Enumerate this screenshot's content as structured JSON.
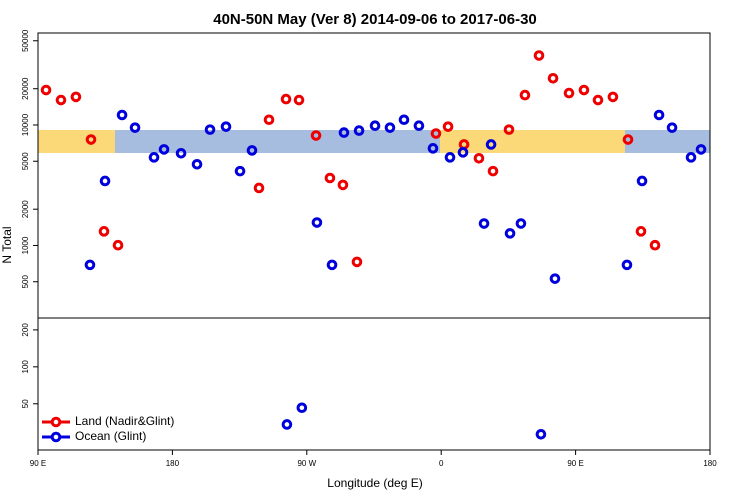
{
  "chart_data": [
    {
      "type": "scatter",
      "title": "40N-50N May (Ver 8)   2014-09-06 to 2017-06-30",
      "ylabel": "N Total",
      "log_y": true,
      "grid": false,
      "legend": "lower left",
      "xlim": [
        90,
        540
      ],
      "ylim": [
        250,
        58000
      ],
      "yticks": [
        500,
        1000,
        2000,
        5000,
        10000,
        20000,
        50000
      ],
      "series": [
        {
          "name": "Land (Nadir&Glint)",
          "color": "#ee0000",
          "x": [
            95.4,
            105.4,
            115.4,
            125.5,
            134.2,
            143.6,
            238.0,
            244.7,
            256.1,
            264.8,
            276.2,
            285.5,
            294.2,
            303.6,
            356.5,
            364.6,
            375.3,
            385.3,
            394.7,
            405.4,
            416.1,
            425.5,
            434.9,
            445.6,
            455.6,
            465.0,
            475.0,
            485.1,
            493.8,
            503.2
          ],
          "values": [
            19500,
            16100,
            17100,
            7570,
            1310,
            1005,
            3000,
            11050,
            16400,
            16100,
            8170,
            3630,
            3180,
            730,
            8490,
            9680,
            6890,
            5290,
            4140,
            9150,
            17700,
            37700,
            24400,
            18400,
            19500,
            16100,
            17100,
            7570,
            1310,
            1005
          ]
        },
        {
          "name": "Ocean (Glint)",
          "color": "#0000dd",
          "x": [
            124.8,
            134.9,
            146.3,
            155.0,
            167.7,
            174.4,
            185.8,
            196.5,
            205.2,
            215.9,
            225.3,
            233.3,
            276.8,
            286.9,
            294.9,
            305.0,
            315.7,
            325.7,
            335.1,
            345.1,
            354.5,
            365.9,
            374.6,
            388.7,
            393.4,
            406.1,
            413.4,
            436.2,
            484.4,
            494.5,
            505.9,
            514.6,
            527.3,
            534.0
          ],
          "values": [
            690,
            3430,
            12100,
            9500,
            5390,
            6270,
            5820,
            4720,
            9150,
            9680,
            4140,
            6150,
            1550,
            690,
            8650,
            8980,
            9860,
            9500,
            11050,
            9860,
            6400,
            5390,
            5930,
            1520,
            6890,
            1260,
            1520,
            530,
            690,
            3430,
            12100,
            9500,
            5390,
            6270
          ]
        }
      ]
    },
    {
      "type": "scatter",
      "xlabel": "Longitude (deg E)",
      "log_y": true,
      "grid": false,
      "xlim": [
        90,
        540
      ],
      "xticks": [
        {
          "value": 90,
          "label": "90 E"
        },
        180,
        {
          "value": 270,
          "label": "90 W"
        },
        {
          "value": 360,
          "label": "0"
        },
        {
          "value": 450,
          "label": "90 E"
        },
        {
          "value": 540,
          "label": "180"
        }
      ],
      "ylim": [
        21,
        250
      ],
      "yticks": [
        50,
        100,
        200
      ],
      "series": [
        {
          "color": "#0000dd",
          "x": [
            256.7,
            266.7,
            426.8
          ],
          "values": [
            33.9,
            46.4,
            28.2
          ]
        }
      ]
    }
  ]
}
